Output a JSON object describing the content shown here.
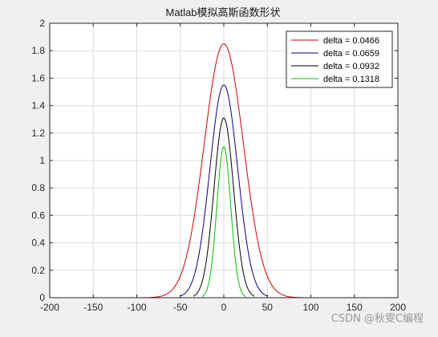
{
  "chart_data": {
    "type": "line",
    "title": "Matlab模拟高斯函数形状",
    "xlabel": "",
    "ylabel": "",
    "xlim": [
      -200,
      200
    ],
    "ylim": [
      0,
      2
    ],
    "xticks": [
      -200,
      -150,
      -100,
      -50,
      0,
      50,
      100,
      150,
      200
    ],
    "yticks": [
      0,
      0.2,
      0.4,
      0.6,
      0.8,
      1,
      1.2,
      1.4,
      1.6,
      1.8,
      2
    ],
    "xtick_labels": [
      "-200",
      "-150",
      "-100",
      "-50",
      "0",
      "50",
      "100",
      "150",
      "200"
    ],
    "ytick_labels": [
      "0",
      "0.2",
      "0.4",
      "0.6",
      "0.8",
      "1",
      "1.2",
      "1.4",
      "1.6",
      "1.8",
      "2"
    ],
    "grid": true,
    "legend_position": "top-right",
    "series": [
      {
        "name": "delta = 0.0466",
        "color": "#d00000",
        "peak": 1.85,
        "sigma": 22.5,
        "support": [
          -200,
          200
        ]
      },
      {
        "name": "delta = 0.0659",
        "color": "#00007f",
        "peak": 1.55,
        "sigma": 16.0,
        "support": [
          -50,
          50
        ]
      },
      {
        "name": "delta = 0.0932",
        "color": "#000000",
        "peak": 1.31,
        "sigma": 11.3,
        "support": [
          -35,
          35
        ]
      },
      {
        "name": "delta = 0.1318",
        "color": "#00c000",
        "peak": 1.1,
        "sigma": 8.0,
        "support": [
          -25,
          25
        ]
      }
    ]
  },
  "watermark": "CSDN @秋雯C编程"
}
